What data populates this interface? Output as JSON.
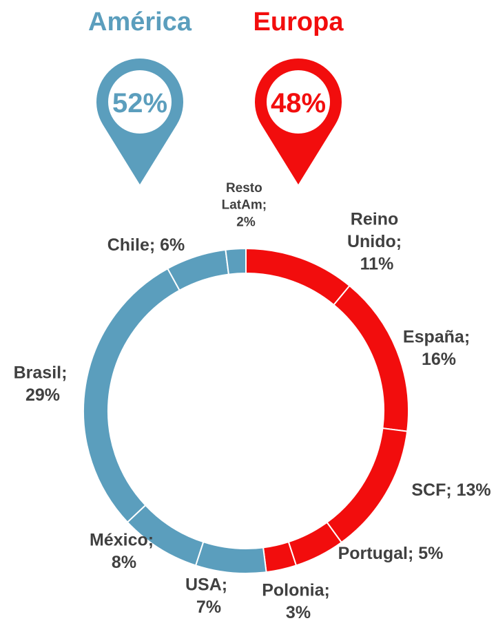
{
  "chart_data": {
    "type": "donut",
    "regions": [
      {
        "name": "América",
        "value": 52,
        "value_label": "52%",
        "color": "#5b9ebd"
      },
      {
        "name": "Europa",
        "value": 48,
        "value_label": "48%",
        "color": "#f20d0d"
      }
    ],
    "values": [
      11,
      16,
      13,
      5,
      3,
      7,
      8,
      29,
      6,
      2
    ],
    "value_labels": [
      "Reino Unido; 11%",
      "España; 16%",
      "SCF; 13%",
      "Portugal; 5%",
      "Polonia; 3%",
      "USA; 7%",
      "México; 8%",
      "Brasil; 29%",
      "Chile; 6%",
      "Resto LatAm; 2%"
    ],
    "colors": [
      "#f20d0d",
      "#f20d0d",
      "#f20d0d",
      "#f20d0d",
      "#f20d0d",
      "#5b9ebd",
      "#5b9ebd",
      "#5b9ebd",
      "#5b9ebd",
      "#5b9ebd"
    ]
  }
}
